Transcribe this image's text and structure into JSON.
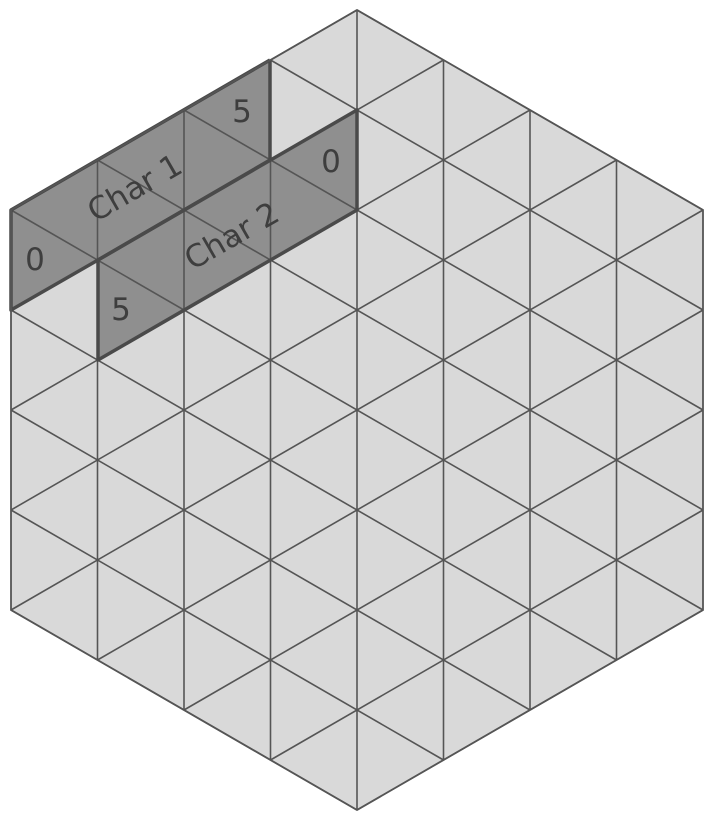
{
  "board": {
    "name": "hexagonal-triangle-grid",
    "colors": {
      "cell_fill": "#d9d9d9",
      "grid_line": "#555555",
      "highlight_fill": "#8f8f8f",
      "highlight_border": "#4a4a4a",
      "text": "#3e3e3e"
    }
  },
  "pieces": [
    {
      "id": "char-1",
      "label": "Char 1",
      "start_value": "0",
      "end_value": "5"
    },
    {
      "id": "char-2",
      "label": "Char 2",
      "start_value": "5",
      "end_value": "0"
    }
  ]
}
